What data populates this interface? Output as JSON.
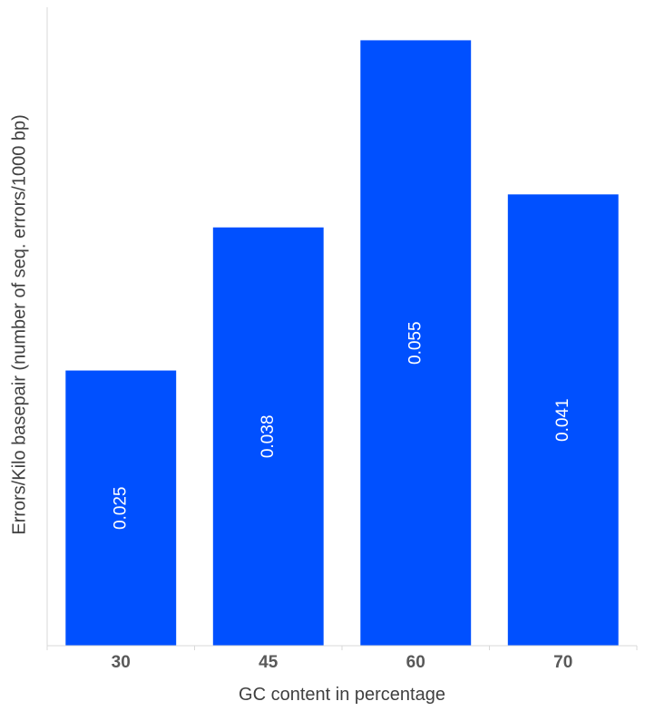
{
  "chart_data": {
    "type": "bar",
    "title": "",
    "xlabel": "GC content in percentage",
    "ylabel": "Errors/Kilo basepair (number of seq. errors/1000 bp)",
    "categories": [
      "30",
      "45",
      "60",
      "70"
    ],
    "values": [
      0.025,
      0.038,
      0.055,
      0.041
    ],
    "data_labels": [
      "0.025",
      "0.038",
      "0.055",
      "0.041"
    ],
    "ylim": [
      0,
      0.058
    ],
    "grid": false,
    "legend": "none",
    "colors": {
      "bar": "#0050FF",
      "axis": "#D9D9D9",
      "tick_label": "#595959",
      "axis_title": "#404040",
      "data_label": "#FFFFFF"
    }
  }
}
